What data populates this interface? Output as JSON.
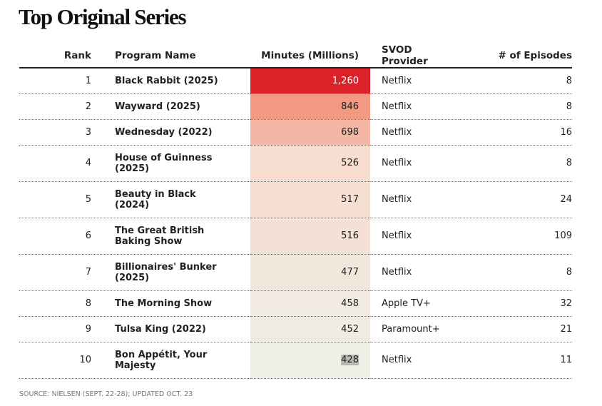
{
  "header": {
    "title": "Top Original Series"
  },
  "table": {
    "columns": [
      "Rank",
      "Program Name",
      "Minutes (Millions)",
      "SVOD Provider",
      "# of Episodes"
    ],
    "rows": [
      [
        "1",
        "Black Rabbit (2025)",
        "1,260",
        "Netflix",
        "8"
      ],
      [
        "2",
        "Wayward (2025)",
        "846",
        "Netflix",
        "8"
      ],
      [
        "3",
        "Wednesday (2022)",
        "698",
        "Netflix",
        "16"
      ],
      [
        "4",
        "House of Guinness (2025)",
        "526",
        "Netflix",
        "8"
      ],
      [
        "5",
        "Beauty in Black (2024)",
        "517",
        "Netflix",
        "24"
      ],
      [
        "6",
        "The Great British Baking Show",
        "516",
        "Netflix",
        "109"
      ],
      [
        "7",
        "Billionaires' Bunker (2025)",
        "477",
        "Netflix",
        "8"
      ],
      [
        "8",
        "The Morning Show",
        "458",
        "Apple TV+",
        "32"
      ],
      [
        "9",
        "Tulsa King (2022)",
        "452",
        "Paramount+",
        "21"
      ],
      [
        "10",
        "Bon Appétit, Your Majesty",
        "428",
        "Netflix",
        "11"
      ]
    ]
  },
  "footer": {
    "source": "SOURCE: NIELSEN (SEPT. 22-28); UPDATED OCT. 23"
  }
}
